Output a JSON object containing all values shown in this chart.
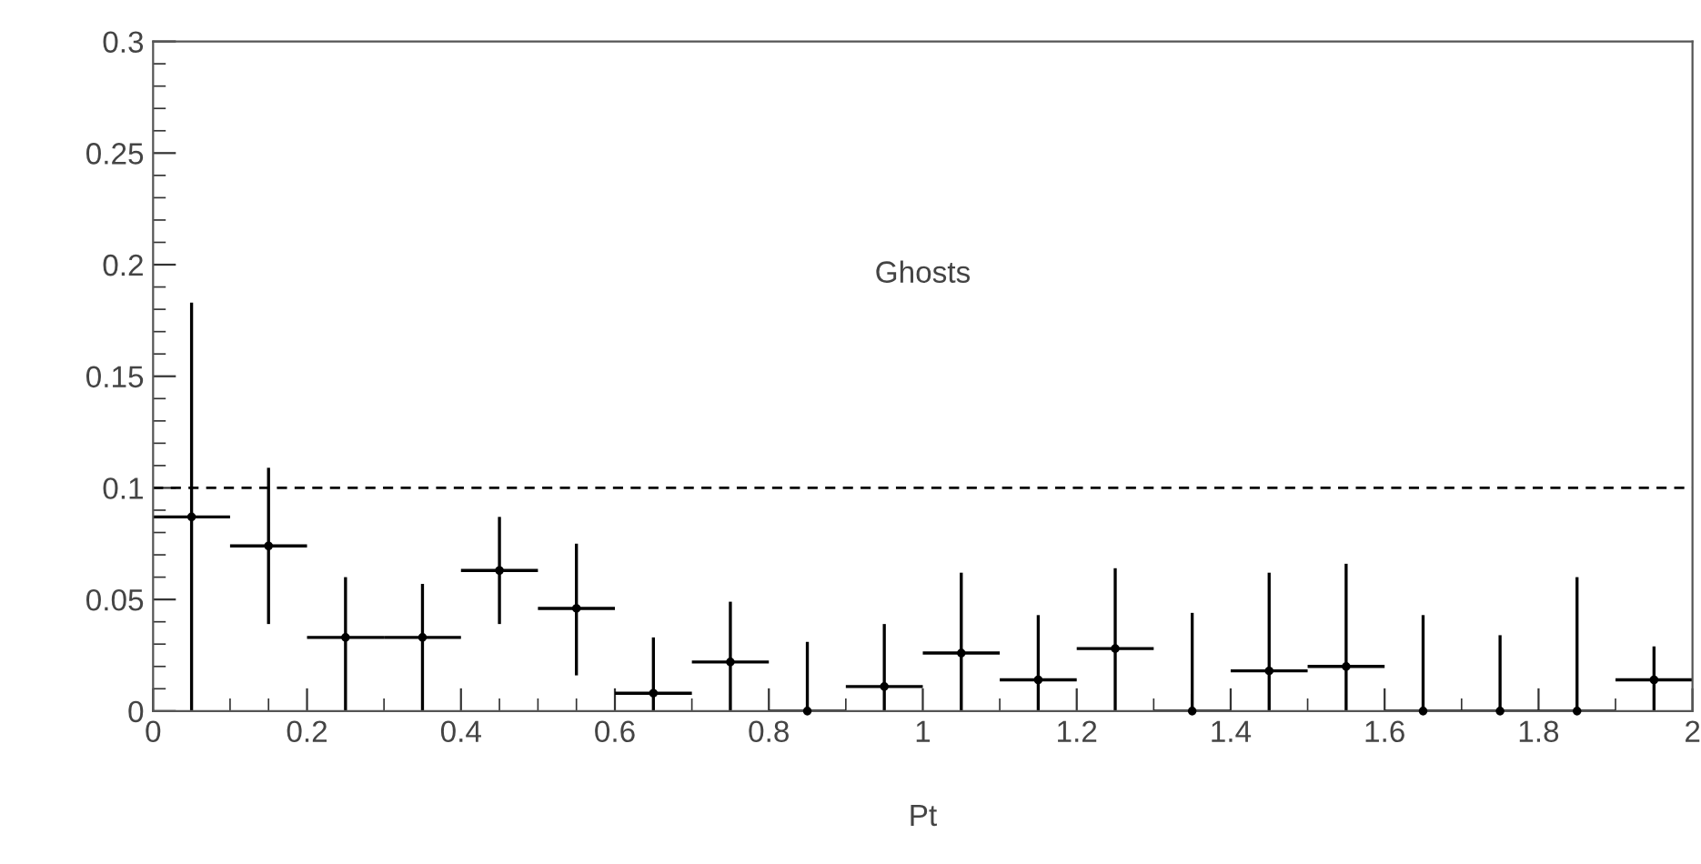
{
  "chart_data": {
    "type": "scatter",
    "xlabel": "Pt",
    "annotations": [
      "Ghosts"
    ],
    "x": [
      0.05,
      0.15,
      0.25,
      0.35,
      0.45,
      0.55,
      0.65,
      0.75,
      0.85,
      0.95,
      1.05,
      1.15,
      1.25,
      1.35,
      1.45,
      1.55,
      1.65,
      1.75,
      1.85,
      1.95
    ],
    "series": [
      {
        "color": "#000000",
        "values": [
          0.087,
          0.074,
          0.033,
          0.033,
          0.063,
          0.046,
          0.008,
          0.022,
          0,
          0.011,
          0.026,
          0.014,
          0.028,
          0,
          0.018,
          0.02,
          0,
          0,
          0,
          0.014
        ],
        "errors": [
          [
            0,
            0.183
          ],
          [
            0.039,
            0.109
          ],
          [
            0,
            0.06
          ],
          [
            0,
            0.057
          ],
          [
            0.039,
            0.087
          ],
          [
            0.016,
            0.075
          ],
          [
            0,
            0.033
          ],
          [
            0,
            0.049
          ],
          [
            0,
            0.031
          ],
          [
            0,
            0.039
          ],
          [
            0,
            0.062
          ],
          [
            0,
            0.043
          ],
          [
            0,
            0.064
          ],
          [
            0,
            0.044
          ],
          [
            0,
            0.062
          ],
          [
            0,
            0.066
          ],
          [
            0,
            0.043
          ],
          [
            0,
            0.034
          ],
          [
            0,
            0.06
          ],
          [
            0,
            0.029
          ]
        ],
        "xerrors": [
          0.05,
          0.05,
          0.05,
          0.05,
          0.05,
          0.05,
          0.05,
          0.05,
          0.05,
          0.05,
          0.05,
          0.05,
          0.05,
          0.05,
          0.05,
          0.05,
          0.05,
          0.05,
          0.05,
          0.05
        ]
      }
    ],
    "marker": "circle",
    "ref_lines": [
      {
        "axis": "y",
        "value": 0.1,
        "line_style": "dashed",
        "color": "#000000"
      }
    ],
    "xlim": [
      0,
      2
    ],
    "xticks": [
      0,
      0.2,
      0.4,
      0.6,
      0.8,
      1,
      1.2,
      1.4,
      1.6,
      1.8,
      2
    ],
    "ylim": [
      0,
      0.3
    ],
    "yticks": [
      0,
      0.05,
      0.1,
      0.15,
      0.2,
      0.25,
      0.3
    ],
    "grid": false,
    "legend": false
  }
}
